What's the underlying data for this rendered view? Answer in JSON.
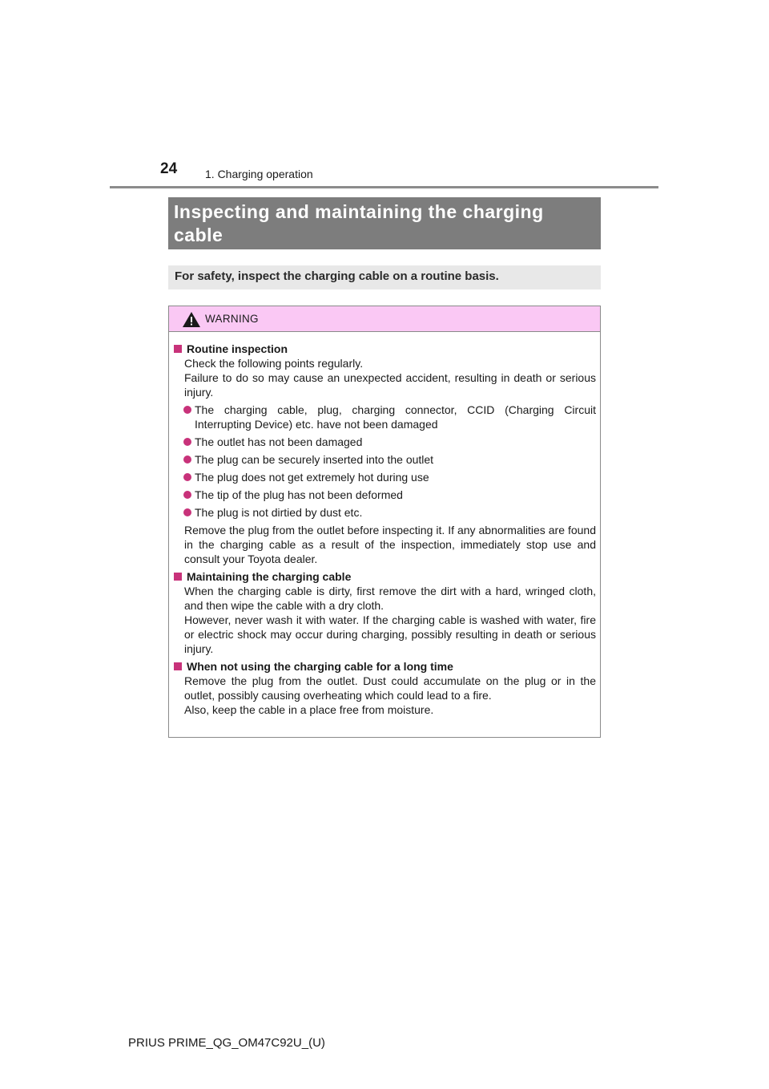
{
  "header": {
    "page_number": "24",
    "section": "1. Charging operation"
  },
  "title": "Inspecting and maintaining the charging cable",
  "intro": "For safety, inspect the charging cable on a routine basis.",
  "warning": {
    "label": "WARNING",
    "icon": "warning-triangle-icon",
    "accent_color": "#c8327a",
    "header_color": "#fac8f4",
    "routine": {
      "heading": "Routine inspection",
      "line1": "Check the following points regularly.",
      "line2": "Failure to do so may cause an unexpected accident, resulting in death or serious injury.",
      "bullets": [
        "The charging cable, plug, charging connector, CCID (Charging Circuit Interrupting Device) etc. have not been damaged",
        "The outlet has not been damaged",
        "The plug can be securely inserted into the outlet",
        "The plug does not get extremely hot during use",
        "The tip of the plug has not been deformed",
        "The plug is not dirtied by dust etc."
      ],
      "after": "Remove the plug from the outlet before inspecting it. If any abnormalities are found in the charging cable as a result of the inspection, immediately stop use and consult your Toyota dealer."
    },
    "maintaining": {
      "heading": "Maintaining the charging cable",
      "line1": "When the charging cable is dirty, first remove the dirt with a hard, wringed cloth, and then wipe the cable with a dry cloth.",
      "line2": "However, never wash it with water. If the charging cable is washed with water, fire or electric shock may occur during charging, possibly resulting in death or serious injury."
    },
    "not_using": {
      "heading": "When not using the charging cable for a long time",
      "line1": "Remove the plug from the outlet. Dust could accumulate on the plug or in the outlet, possibly causing overheating which could lead to a fire.",
      "line2": "Also, keep the cable in a place free from moisture."
    }
  },
  "footer": "PRIUS PRIME_QG_OM47C92U_(U)"
}
